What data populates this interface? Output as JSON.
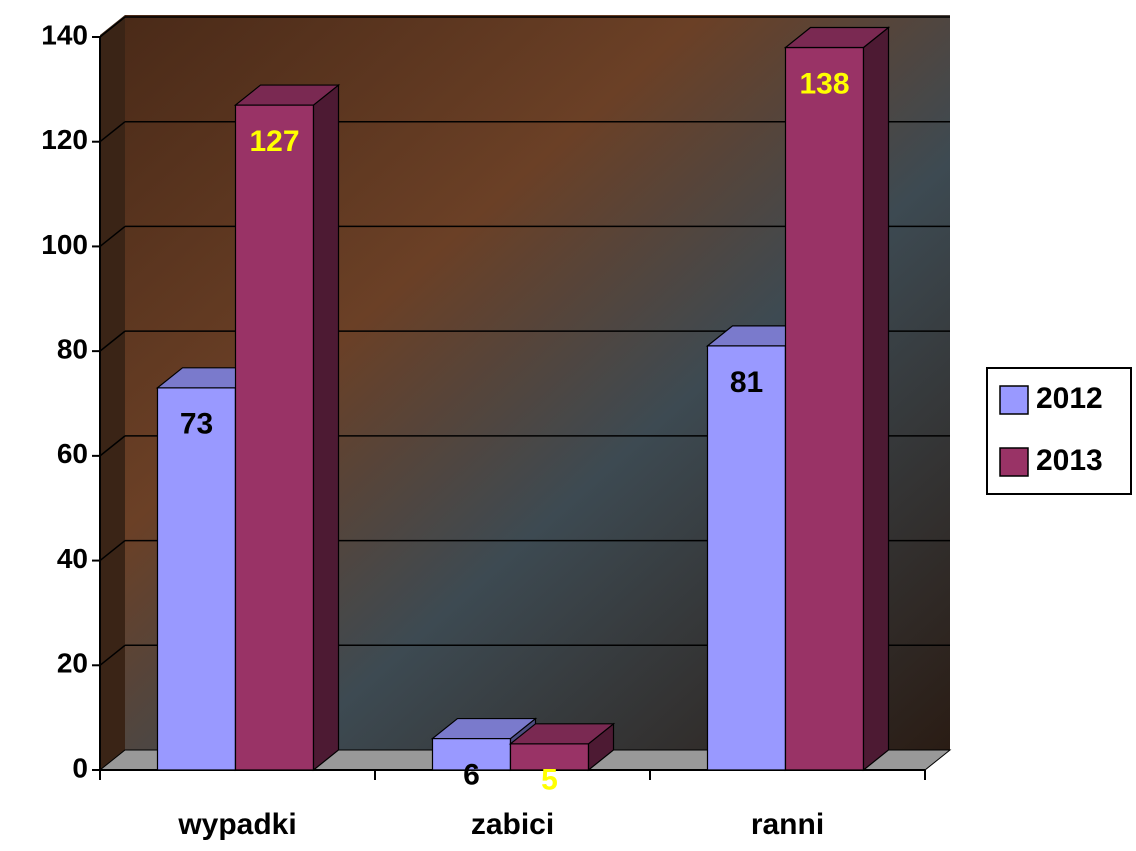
{
  "chart_data": {
    "type": "bar",
    "categories": [
      "wypadki",
      "zabici",
      "ranni"
    ],
    "series": [
      {
        "name": "2012",
        "color": "#9999ff",
        "label_color": "#000000",
        "values": [
          73,
          6,
          81
        ]
      },
      {
        "name": "2013",
        "color": "#993366",
        "label_color": "#ffff00",
        "values": [
          127,
          5,
          138
        ]
      }
    ],
    "ylim": [
      0,
      140
    ],
    "yticks": [
      0,
      20,
      40,
      60,
      80,
      100,
      120,
      140
    ],
    "grid": true,
    "legend": "right"
  }
}
